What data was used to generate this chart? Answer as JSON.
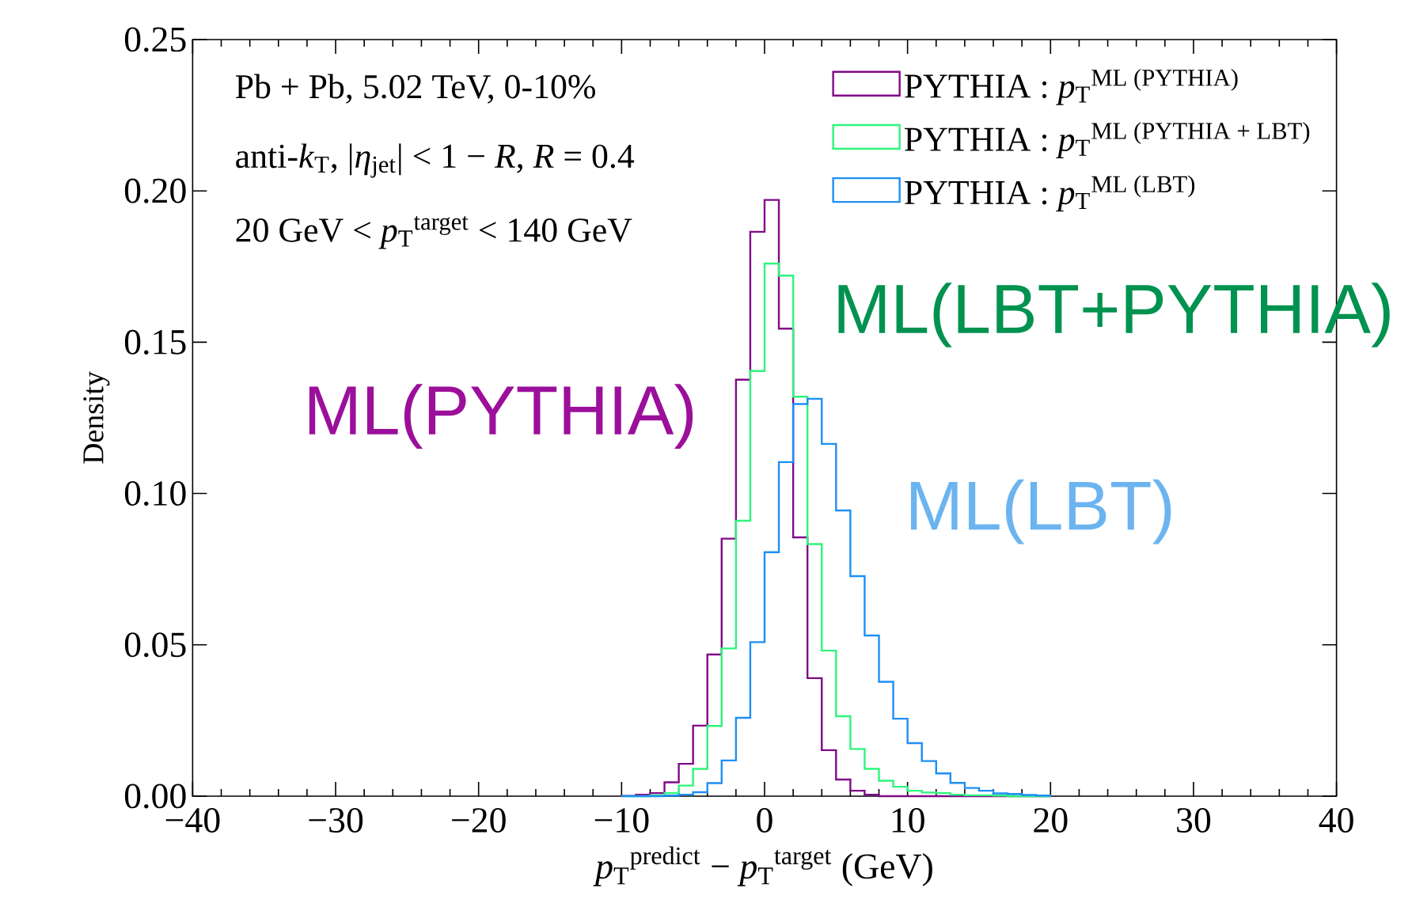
{
  "chart_data": {
    "type": "histogram",
    "bins": [
      -10,
      -9,
      -8,
      -7,
      -6,
      -5,
      -4,
      -3,
      -2,
      -1,
      0,
      1,
      2,
      3,
      4,
      5,
      6,
      7,
      8,
      9,
      10,
      11,
      12,
      13,
      14,
      15,
      16,
      17,
      18,
      19,
      20
    ],
    "series": [
      {
        "name": "PYTHIA : *p*$_{T}$$^{ML (PYTHIA)}$",
        "color": "#800a88",
        "values": [
          0.0001,
          0.0005,
          0.001,
          0.0046,
          0.0107,
          0.0233,
          0.0468,
          0.0851,
          0.1376,
          0.1865,
          0.197,
          0.1545,
          0.0855,
          0.039,
          0.0152,
          0.0055,
          0.0018,
          0.0005,
          0,
          0,
          0,
          0,
          0,
          0,
          0,
          0,
          0,
          0,
          0,
          0
        ]
      },
      {
        "name": "PYTHIA : *p*$_{T}$$^{ML (PYTHIA + LBT)}$",
        "color": "#2ef57c",
        "values": [
          0,
          0,
          0.0003,
          0.001,
          0.0035,
          0.009,
          0.0232,
          0.0488,
          0.091,
          0.1405,
          0.176,
          0.172,
          0.132,
          0.0833,
          0.0481,
          0.0264,
          0.0156,
          0.009,
          0.0051,
          0.0031,
          0.0018,
          0.0012,
          0.001,
          0.0005,
          0.0003,
          0.0003,
          0.0002,
          0,
          0,
          0
        ]
      },
      {
        "name": "PYTHIA : *p*$_{T}$$^{ML (LBT)}$",
        "color": "#1e8ff5",
        "values": [
          0,
          0,
          0,
          0.0002,
          0.0005,
          0.0013,
          0.0043,
          0.0118,
          0.0259,
          0.0509,
          0.0806,
          0.1104,
          0.1296,
          0.1313,
          0.1164,
          0.0944,
          0.0727,
          0.0531,
          0.0378,
          0.0256,
          0.0175,
          0.0116,
          0.0075,
          0.0044,
          0.0027,
          0.0018,
          0.0009,
          0.0007,
          0.0004,
          0.0002
        ]
      }
    ],
    "xlabel": "*p*$_{T}$$^{predict}$ − *p*$_{T}$$^{target}$ (GeV)",
    "ylabel": "Density",
    "xlim": [
      -40,
      40
    ],
    "xticks": [
      {
        "value": -40,
        "label": "−40"
      },
      {
        "value": -30,
        "label": "−30"
      },
      {
        "value": -20,
        "label": "−20"
      },
      {
        "value": -10,
        "label": "−10"
      },
      0,
      10,
      20,
      30,
      40,
      {
        "value": -38,
        "label": null
      },
      {
        "value": -36,
        "label": null
      },
      {
        "value": -34,
        "label": null
      },
      {
        "value": -32,
        "label": null
      },
      {
        "value": -28,
        "label": null
      },
      {
        "value": -26,
        "label": null
      },
      {
        "value": -24,
        "label": null
      },
      {
        "value": -22,
        "label": null
      },
      {
        "value": -18,
        "label": null
      },
      {
        "value": -16,
        "label": null
      },
      {
        "value": -14,
        "label": null
      },
      {
        "value": -12,
        "label": null
      },
      {
        "value": -8,
        "label": null
      },
      {
        "value": -6,
        "label": null
      },
      {
        "value": -4,
        "label": null
      },
      {
        "value": -2,
        "label": null
      },
      {
        "value": 2,
        "label": null
      },
      {
        "value": 4,
        "label": null
      },
      {
        "value": 6,
        "label": null
      },
      {
        "value": 8,
        "label": null
      },
      {
        "value": 12,
        "label": null
      },
      {
        "value": 14,
        "label": null
      },
      {
        "value": 16,
        "label": null
      },
      {
        "value": 18,
        "label": null
      },
      {
        "value": 22,
        "label": null
      },
      {
        "value": 24,
        "label": null
      },
      {
        "value": 26,
        "label": null
      },
      {
        "value": 28,
        "label": null
      },
      {
        "value": 32,
        "label": null
      },
      {
        "value": 34,
        "label": null
      },
      {
        "value": 36,
        "label": null
      },
      {
        "value": 38,
        "label": null
      }
    ],
    "ylim": [
      0,
      0.25
    ],
    "yticks": [
      {
        "value": 0,
        "label": "0.00"
      },
      {
        "value": 0.05,
        "label": "0.05"
      },
      {
        "value": 0.1,
        "label": "0.10"
      },
      {
        "value": 0.15,
        "label": "0.15"
      },
      {
        "value": 0.2,
        "label": "0.20"
      },
      {
        "value": 0.25,
        "label": "0.25"
      }
    ],
    "legend": "top right",
    "annotations": [
      "Pb + Pb, 5.02 TeV, 0-10%",
      "anti-*k*$_{T}$, |*η*$_{jet}$| < 1 − *R*, *R* = 0.4",
      "20 GeV < *p*$_{T}$$^{target}$ < 140 GeV",
      "ML(PYTHIA)",
      "ML(LBT+PYTHIA)",
      "ML(LBT)"
    ]
  }
}
